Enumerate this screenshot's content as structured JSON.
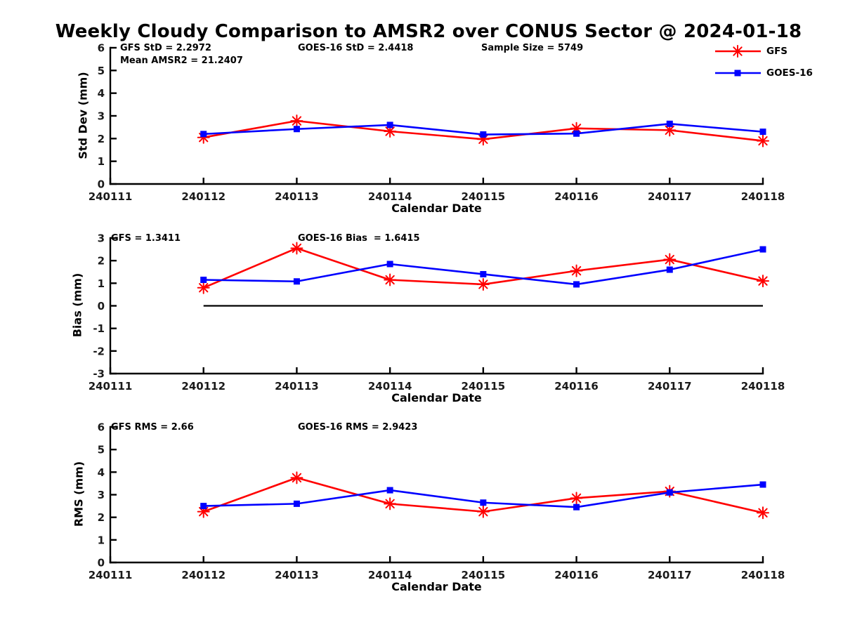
{
  "title": "Weekly Cloudy Comparison to AMSR2 over CONUS Sector @ 2024-01-18",
  "colors": {
    "gfs": "#ff0000",
    "goes16": "#0000ff",
    "axis": "#000000",
    "tick_label": "#1a1a1a"
  },
  "legend": {
    "position": "top-right",
    "entries": [
      {
        "name": "GFS",
        "color": "#ff0000",
        "marker": "star"
      },
      {
        "name": "GOES-16",
        "color": "#0000ff",
        "marker": "square"
      }
    ]
  },
  "x_axis": {
    "label": "Calendar Date",
    "ticks": [
      "240111",
      "240112",
      "240113",
      "240114",
      "240115",
      "240116",
      "240117",
      "240118"
    ],
    "data_dates": [
      "240112",
      "240113",
      "240114",
      "240115",
      "240116",
      "240117",
      "240118"
    ]
  },
  "chart_data": [
    {
      "id": "stddev",
      "type": "line",
      "ylabel": "Std Dev (mm)",
      "ylim": [
        0,
        6
      ],
      "yticks": [
        0,
        1,
        2,
        3,
        4,
        5,
        6
      ],
      "grid": false,
      "zero_line": false,
      "series": [
        {
          "name": "GFS",
          "color": "#ff0000",
          "marker": "star",
          "values": [
            2.05,
            2.78,
            2.32,
            1.97,
            2.45,
            2.37,
            1.9
          ]
        },
        {
          "name": "GOES-16",
          "color": "#0000ff",
          "marker": "square",
          "values": [
            2.2,
            2.42,
            2.6,
            2.18,
            2.22,
            2.65,
            2.3
          ]
        }
      ],
      "annotations": [
        {
          "text": "GFS StD = 2.2972"
        },
        {
          "text": "Mean AMSR2 = 21.2407"
        },
        {
          "text": "GOES-16 StD = 2.4418"
        },
        {
          "text": "Sample Size = 5749"
        }
      ]
    },
    {
      "id": "bias",
      "type": "line",
      "ylabel": "Bias (mm)",
      "ylim": [
        -3,
        3
      ],
      "yticks": [
        3,
        2,
        1,
        0,
        -1,
        -2,
        -3
      ],
      "grid": false,
      "zero_line": true,
      "series": [
        {
          "name": "GFS",
          "color": "#ff0000",
          "marker": "star",
          "values": [
            0.8,
            2.55,
            1.15,
            0.95,
            1.55,
            2.05,
            1.1
          ]
        },
        {
          "name": "GOES-16",
          "color": "#0000ff",
          "marker": "square",
          "values": [
            1.15,
            1.08,
            1.85,
            1.4,
            0.95,
            1.6,
            2.5
          ]
        }
      ],
      "annotations": [
        {
          "text": "GFS = 1.3411"
        },
        {
          "text": "GOES-16 Bias  = 1.6415"
        }
      ]
    },
    {
      "id": "rms",
      "type": "line",
      "ylabel": "RMS (mm)",
      "ylim": [
        0,
        6
      ],
      "yticks": [
        0,
        1,
        2,
        3,
        4,
        5,
        6
      ],
      "grid": false,
      "zero_line": false,
      "series": [
        {
          "name": "GFS",
          "color": "#ff0000",
          "marker": "star",
          "values": [
            2.25,
            3.75,
            2.6,
            2.25,
            2.85,
            3.15,
            2.2
          ]
        },
        {
          "name": "GOES-16",
          "color": "#0000ff",
          "marker": "square",
          "values": [
            2.5,
            2.6,
            3.2,
            2.65,
            2.45,
            3.1,
            3.45
          ]
        }
      ],
      "annotations": [
        {
          "text": "GFS RMS = 2.66"
        },
        {
          "text": "GOES-16 RMS = 2.9423"
        }
      ]
    }
  ]
}
